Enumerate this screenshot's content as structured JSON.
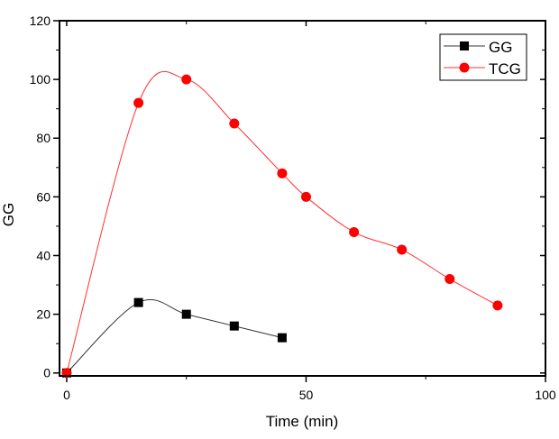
{
  "chart_data": {
    "type": "line",
    "title": "",
    "xlabel": "Time (min)",
    "ylabel": "GG",
    "xlim": [
      -1.5,
      100
    ],
    "ylim": [
      -1,
      120
    ],
    "xticks": [
      0,
      50,
      100
    ],
    "xtick_labels": [
      "0",
      "50",
      "100"
    ],
    "x_minor_step": 25,
    "yticks": [
      0,
      20,
      40,
      60,
      80,
      100,
      120
    ],
    "ytick_labels": [
      "0",
      "20",
      "40",
      "60",
      "80",
      "100",
      "120"
    ],
    "y_minor_step": 10,
    "grid": false,
    "legend_position": "top-right",
    "series": [
      {
        "name": "GG",
        "color": "#000000",
        "line_color": "#333333",
        "marker": "square",
        "x": [
          0,
          15,
          25,
          35,
          45
        ],
        "y": [
          0,
          24,
          20,
          16,
          12
        ]
      },
      {
        "name": "TCG",
        "color": "#ff0000",
        "line_color": "#ff3030",
        "marker": "circle",
        "x": [
          0,
          15,
          25,
          35,
          45,
          50,
          60,
          70,
          80,
          90
        ],
        "y": [
          0,
          92,
          100,
          85,
          68,
          60,
          48,
          42,
          32,
          23
        ]
      }
    ]
  }
}
